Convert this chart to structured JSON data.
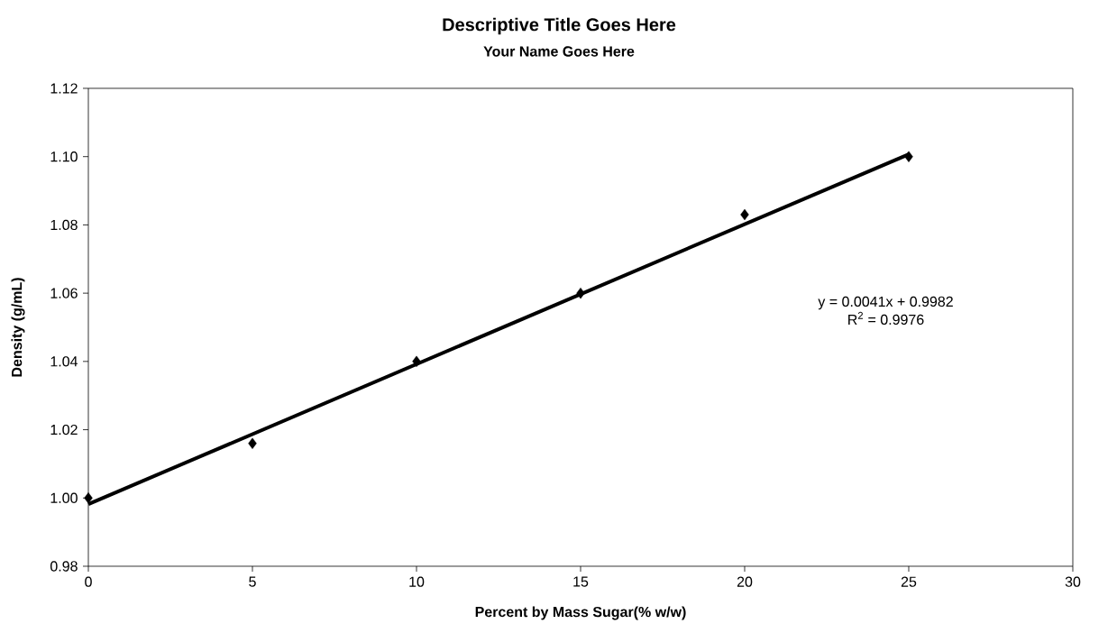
{
  "chart_data": {
    "type": "scatter",
    "title": "Descriptive Title Goes Here",
    "subtitle": "Your Name Goes Here",
    "xlabel": "Percent by Mass Sugar(% w/w)",
    "ylabel": "Density (g/mL)",
    "x": [
      0,
      5,
      10,
      15,
      20,
      25
    ],
    "series": [
      {
        "color": "#000000",
        "values": [
          1.0,
          1.016,
          1.04,
          1.06,
          1.083,
          1.1
        ]
      },
      {
        "type": "line",
        "color": "#000000",
        "x": [
          0,
          25
        ],
        "values": [
          0.9982,
          1.1007
        ],
        "marker": "none"
      }
    ],
    "marker": "diamond",
    "annotations": [
      "y = 0.0041x + 0.9982",
      "R$^{2}$ = 0.9976"
    ],
    "xlim": [
      0,
      30
    ],
    "xticks": [
      0,
      5,
      10,
      15,
      20,
      25,
      30
    ],
    "ylim": [
      0.98,
      1.12
    ],
    "yticks": [
      {
        "value": 0.98,
        "label": "0.98"
      },
      {
        "value": 1.0,
        "label": "1.00"
      },
      {
        "value": 1.02,
        "label": "1.02"
      },
      {
        "value": 1.04,
        "label": "1.04"
      },
      {
        "value": 1.06,
        "label": "1.06"
      },
      {
        "value": 1.08,
        "label": "1.08"
      },
      {
        "value": 1.1,
        "label": "1.10"
      },
      {
        "value": 1.12,
        "label": "1.12"
      }
    ]
  }
}
